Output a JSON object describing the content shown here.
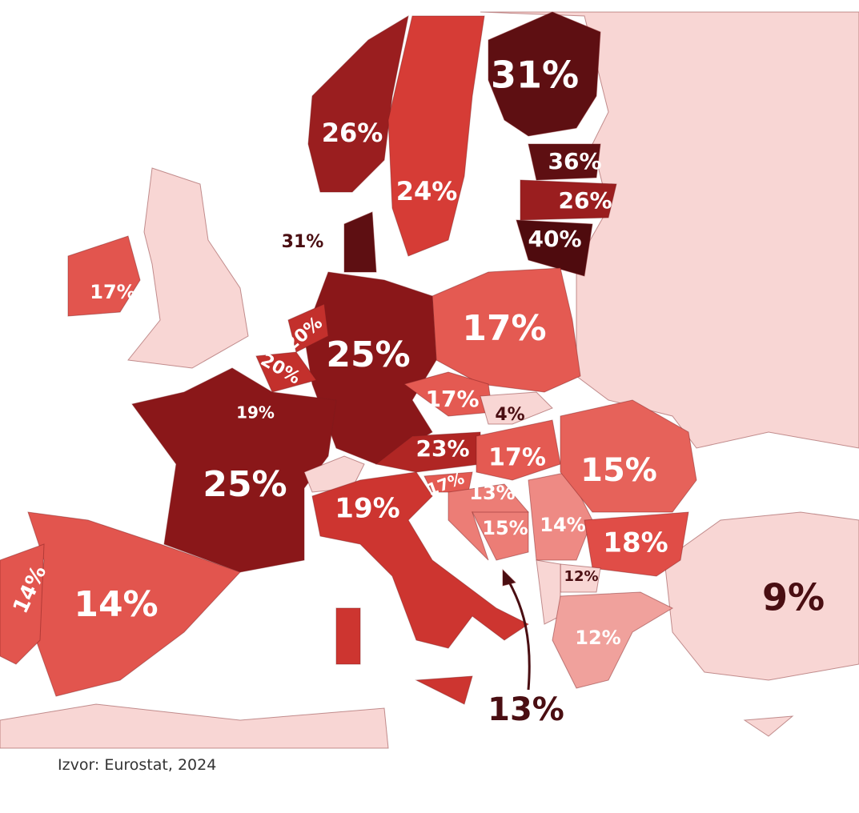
{
  "labels": [
    "31%",
    "26%",
    "24%",
    "36%",
    "26%",
    "40%",
    "31%",
    "17%",
    "17%",
    "20%",
    "25%",
    "20%",
    "19%",
    "17%",
    "4%",
    "23%",
    "17%",
    "15%",
    "25%",
    "17%",
    "13%",
    "19%",
    "15%",
    "14%",
    "18%",
    "12%",
    "14%",
    "14%",
    "9%",
    "12%",
    "13%"
  ],
  "source": "Izvor: Eurostat, 2024"
}
